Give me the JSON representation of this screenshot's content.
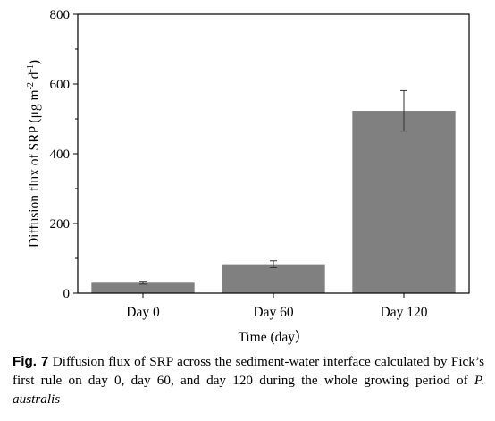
{
  "chart_data": {
    "type": "bar",
    "categories": [
      "Day 0",
      "Day 60",
      "Day 120"
    ],
    "values": [
      30,
      83,
      523
    ],
    "errors": [
      4,
      10,
      58
    ],
    "xlabel": "Time (day）",
    "ylabel": "Diffusion flux of SRP (μg m⁻² d⁻¹)",
    "ylabel_base": "Diffusion flux of SRP (μg m",
    "ylabel_sup1": "-2",
    "ylabel_mid": " d",
    "ylabel_sup2": "-1",
    "ylabel_end": ")",
    "ylim": [
      0,
      800
    ],
    "yticks": [
      0,
      200,
      400,
      600,
      800
    ],
    "ytick_labels": [
      "0",
      "200",
      "400",
      "600",
      "800"
    ],
    "grid": false,
    "bar_color": "#808080"
  },
  "caption": {
    "label": "Fig. 7",
    "text": "Diffusion flux of SRP across the sediment-water interface calculated by Fick’s first rule on day 0, day 60, and day 120 during the whole growing period of",
    "species": "P. australis"
  }
}
